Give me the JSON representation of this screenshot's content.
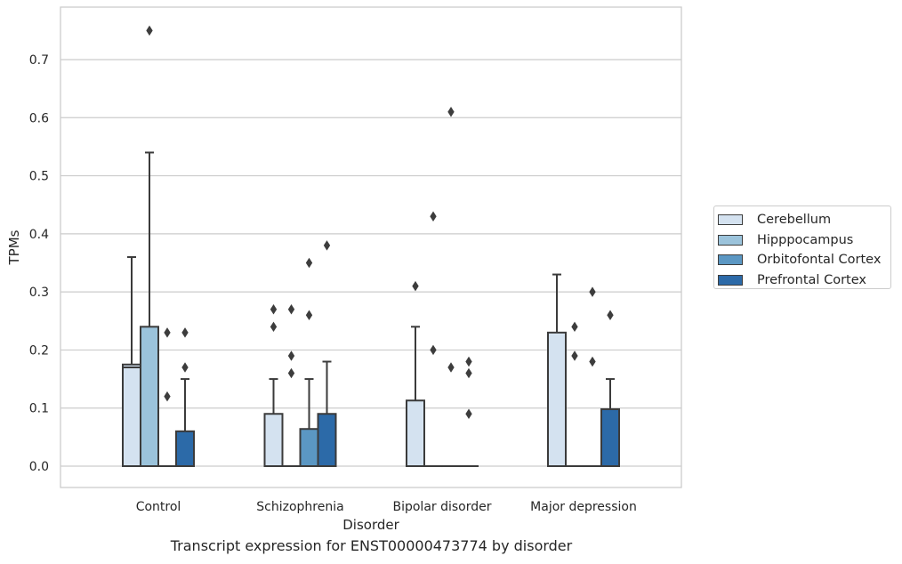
{
  "chart_data": {
    "type": "box",
    "title": "Transcript expression for ENST00000473774 by disorder",
    "xlabel": "Disorder",
    "ylabel": "TPMs",
    "ylim": [
      -0.036,
      0.792
    ],
    "yticks": [
      0.0,
      0.1,
      0.2,
      0.3,
      0.4,
      0.5,
      0.6,
      0.7
    ],
    "ytick_labels": [
      "0.0",
      "0.1",
      "0.2",
      "0.3",
      "0.4",
      "0.5",
      "0.6",
      "0.7"
    ],
    "grid": "horizontal",
    "legend_position": "right",
    "categories": [
      "Control",
      "Schizophrenia",
      "Bipolar disorder",
      "Major depression"
    ],
    "series": [
      {
        "name": "Cerebellum",
        "color": "#d4e2f0",
        "boxes": [
          {
            "q1": 0.0,
            "median": 0.17,
            "q3": 0.175,
            "whisker_low": 0.0,
            "whisker_high": 0.36,
            "outliers": []
          },
          {
            "q1": 0.0,
            "median": 0.0,
            "q3": 0.09,
            "whisker_low": 0.0,
            "whisker_high": 0.15,
            "outliers": [
              0.27,
              0.24
            ]
          },
          {
            "q1": 0.0,
            "median": 0.0,
            "q3": 0.113,
            "whisker_low": 0.0,
            "whisker_high": 0.24,
            "outliers": [
              0.31
            ]
          },
          {
            "q1": 0.0,
            "median": 0.0,
            "q3": 0.23,
            "whisker_low": 0.0,
            "whisker_high": 0.33,
            "outliers": []
          }
        ]
      },
      {
        "name": "Hipppocampus",
        "color": "#9bc3db",
        "boxes": [
          {
            "q1": 0.0,
            "median": 0.0,
            "q3": 0.24,
            "whisker_low": 0.0,
            "whisker_high": 0.54,
            "outliers": [
              0.75
            ]
          },
          {
            "q1": 0.0,
            "median": 0.0,
            "q3": 0.0,
            "whisker_low": 0.0,
            "whisker_high": 0.0,
            "outliers": [
              0.27,
              0.19,
              0.16
            ]
          },
          {
            "q1": 0.0,
            "median": 0.0,
            "q3": 0.0,
            "whisker_low": 0.0,
            "whisker_high": 0.0,
            "outliers": [
              0.43,
              0.2
            ]
          },
          {
            "q1": 0.0,
            "median": 0.0,
            "q3": 0.0,
            "whisker_low": 0.0,
            "whisker_high": 0.0,
            "outliers": [
              0.24,
              0.19
            ]
          }
        ]
      },
      {
        "name": "Orbitofontal Cortex",
        "color": "#5b97c3",
        "boxes": [
          {
            "q1": 0.0,
            "median": 0.0,
            "q3": 0.0,
            "whisker_low": 0.0,
            "whisker_high": 0.0,
            "outliers": [
              0.23,
              0.12
            ]
          },
          {
            "q1": 0.0,
            "median": 0.0,
            "q3": 0.064,
            "whisker_low": 0.0,
            "whisker_high": 0.15,
            "outliers": [
              0.35,
              0.26
            ]
          },
          {
            "q1": 0.0,
            "median": 0.0,
            "q3": 0.0,
            "whisker_low": 0.0,
            "whisker_high": 0.0,
            "outliers": [
              0.61,
              0.17
            ]
          },
          {
            "q1": 0.0,
            "median": 0.0,
            "q3": 0.0,
            "whisker_low": 0.0,
            "whisker_high": 0.0,
            "outliers": [
              0.3,
              0.18
            ]
          }
        ]
      },
      {
        "name": "Prefrontal Cortex",
        "color": "#2c6aa8",
        "boxes": [
          {
            "q1": 0.0,
            "median": 0.0,
            "q3": 0.06,
            "whisker_low": 0.0,
            "whisker_high": 0.15,
            "outliers": [
              0.23,
              0.17
            ]
          },
          {
            "q1": 0.0,
            "median": 0.0,
            "q3": 0.09,
            "whisker_low": 0.0,
            "whisker_high": 0.18,
            "outliers": [
              0.38
            ]
          },
          {
            "q1": 0.0,
            "median": 0.0,
            "q3": 0.0,
            "whisker_low": 0.0,
            "whisker_high": 0.0,
            "outliers": [
              0.18,
              0.16,
              0.09
            ]
          },
          {
            "q1": 0.0,
            "median": 0.0,
            "q3": 0.098,
            "whisker_low": 0.0,
            "whisker_high": 0.15,
            "outliers": [
              0.26
            ]
          }
        ]
      }
    ]
  }
}
